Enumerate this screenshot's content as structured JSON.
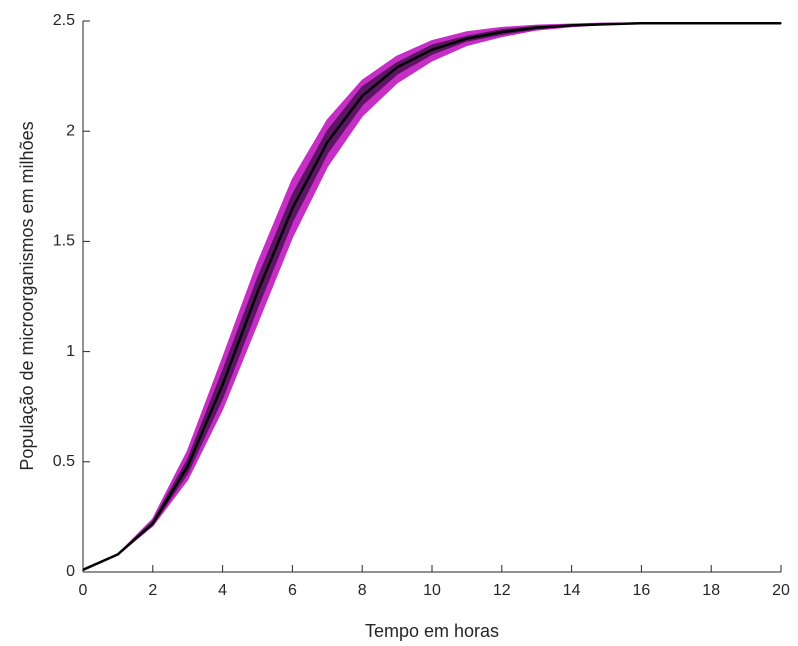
{
  "chart_data": {
    "type": "line",
    "xlabel": "Tempo em horas",
    "ylabel": "População de microorganismos em milhões",
    "x": [
      0,
      1,
      2,
      3,
      4,
      5,
      6,
      7,
      8,
      9,
      10,
      11,
      12,
      13,
      14,
      15,
      16,
      17,
      18,
      19,
      20
    ],
    "series": [
      {
        "color": "#c62ec6",
        "values": [
          0.01,
          0.08,
          0.24,
          0.55,
          0.97,
          1.4,
          1.78,
          2.05,
          2.23,
          2.34,
          2.41,
          2.45,
          2.47,
          2.48,
          2.485,
          2.49,
          2.49,
          2.49,
          2.49,
          2.49,
          2.49
        ]
      },
      {
        "color": "#c62ec6",
        "values": [
          0.01,
          0.08,
          0.21,
          0.42,
          0.74,
          1.13,
          1.52,
          1.84,
          2.07,
          2.22,
          2.32,
          2.39,
          2.43,
          2.46,
          2.475,
          2.485,
          2.49,
          2.49,
          2.49,
          2.49,
          2.49
        ]
      },
      {
        "color": "#5e1566",
        "values": [
          0.01,
          0.08,
          0.23,
          0.51,
          0.91,
          1.33,
          1.71,
          2.0,
          2.2,
          2.31,
          2.39,
          2.43,
          2.46,
          2.475,
          2.48,
          2.487,
          2.49,
          2.49,
          2.49,
          2.49,
          2.49
        ]
      },
      {
        "color": "#5e1566",
        "values": [
          0.01,
          0.08,
          0.215,
          0.45,
          0.79,
          1.2,
          1.59,
          1.9,
          2.12,
          2.26,
          2.35,
          2.41,
          2.44,
          2.465,
          2.478,
          2.485,
          2.49,
          2.49,
          2.49,
          2.49,
          2.49
        ]
      },
      {
        "color": "#000000",
        "values": [
          0.01,
          0.08,
          0.22,
          0.48,
          0.85,
          1.27,
          1.65,
          1.95,
          2.16,
          2.29,
          2.37,
          2.42,
          2.45,
          2.47,
          2.48,
          2.485,
          2.49,
          2.49,
          2.49,
          2.49,
          2.49
        ]
      }
    ],
    "xlim": [
      0,
      20
    ],
    "xticks": [
      0,
      2,
      4,
      6,
      8,
      10,
      12,
      14,
      16,
      18,
      20
    ],
    "ylim": [
      0,
      2.5
    ],
    "yticks": [
      0,
      0.5,
      1,
      1.5,
      2,
      2.5
    ]
  }
}
